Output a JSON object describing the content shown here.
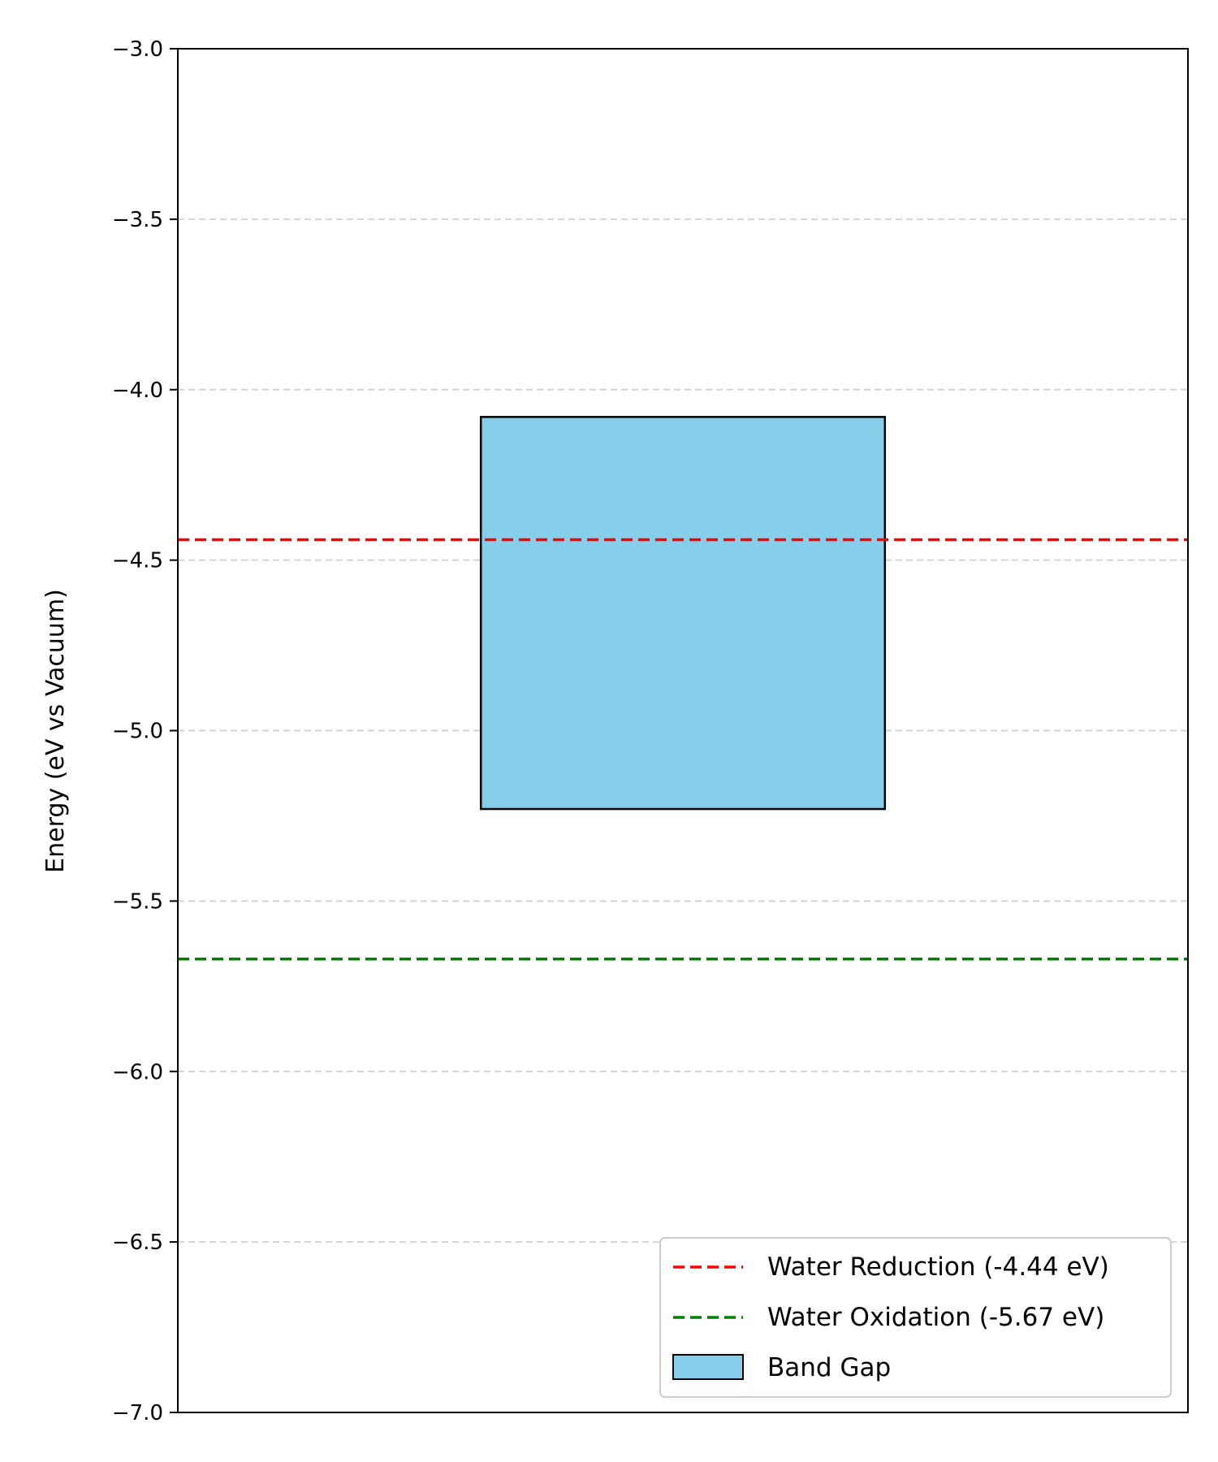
{
  "chart_data": {
    "type": "bar",
    "title": "",
    "xlabel": "",
    "ylabel": "Energy (eV vs Vacuum)",
    "ylim": [
      -7.0,
      -3.0
    ],
    "yticks": [
      -3.0,
      -3.5,
      -4.0,
      -4.5,
      -5.0,
      -5.5,
      -6.0,
      -6.5,
      -7.0
    ],
    "ytick_labels": [
      "−3.0",
      "−3.5",
      "−4.0",
      "−4.5",
      "−5.0",
      "−5.5",
      "−6.0",
      "−6.5",
      "−7.0"
    ],
    "grid": {
      "y": true,
      "x": false,
      "style": "dashed",
      "color": "#d3d3d3"
    },
    "bars": [
      {
        "name": "Band Gap",
        "top": -4.08,
        "bottom": -5.23,
        "color": "#87ceeb",
        "edge_color": "#000000"
      }
    ],
    "reference_lines": [
      {
        "name": "Water Reduction (-4.44 eV)",
        "y": -4.44,
        "color": "#ff0000",
        "style": "dashed"
      },
      {
        "name": "Water Oxidation (-5.67 eV)",
        "y": -5.67,
        "color": "#008000",
        "style": "dashed"
      }
    ],
    "legend": {
      "placement": "lower-right",
      "entries": [
        {
          "label": "Water Reduction (-4.44 eV)",
          "kind": "line",
          "color": "#ff0000"
        },
        {
          "label": "Water Oxidation (-5.67 eV)",
          "kind": "line",
          "color": "#008000"
        },
        {
          "label": "Band Gap",
          "kind": "patch",
          "color": "#87ceeb"
        }
      ]
    }
  }
}
